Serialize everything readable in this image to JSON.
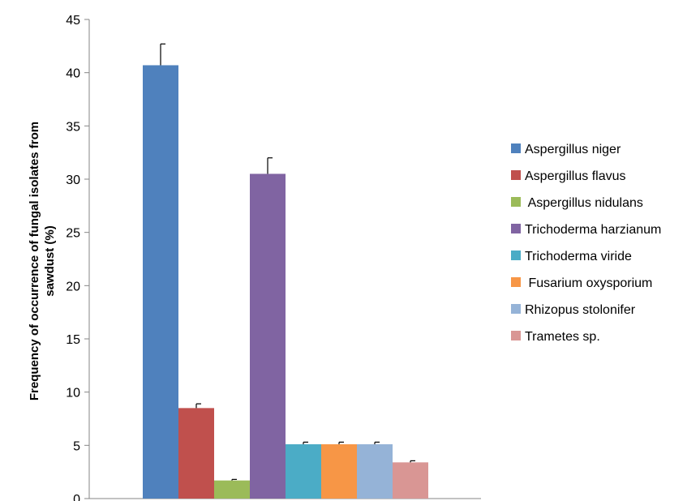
{
  "chart_data": {
    "type": "bar",
    "title": "",
    "xlabel": "",
    "ylabel_lines": [
      "Frequency of occurrence of fungal isolates from",
      "sawdust (%)"
    ],
    "ylim": [
      0,
      45
    ],
    "yticks": [
      0,
      5,
      10,
      15,
      20,
      25,
      30,
      35,
      40,
      45
    ],
    "grid": false,
    "legend_position": "right",
    "error_bars": true,
    "series": [
      {
        "name": "Aspergillus niger",
        "value": 40.7,
        "error": 2.0,
        "color": "#4F81BD"
      },
      {
        "name": "Aspergillus flavus",
        "value": 8.5,
        "error": 0.4,
        "color": "#C0504D"
      },
      {
        "name": " Aspergillus nidulans",
        "value": 1.7,
        "error": 0.1,
        "color": "#9BBB59"
      },
      {
        "name": "Trichoderma harzianum",
        "value": 30.5,
        "error": 1.5,
        "color": "#8064A2"
      },
      {
        "name": "Trichoderma viride",
        "value": 5.1,
        "error": 0.2,
        "color": "#4BACC6"
      },
      {
        "name": " Fusarium oxysporium",
        "value": 5.1,
        "error": 0.2,
        "color": "#F79646"
      },
      {
        "name": "Rhizopus stolonifer",
        "value": 5.1,
        "error": 0.2,
        "color": "#95B3D7"
      },
      {
        "name": "Trametes sp.",
        "value": 3.4,
        "error": 0.15,
        "color": "#D99694"
      }
    ]
  }
}
